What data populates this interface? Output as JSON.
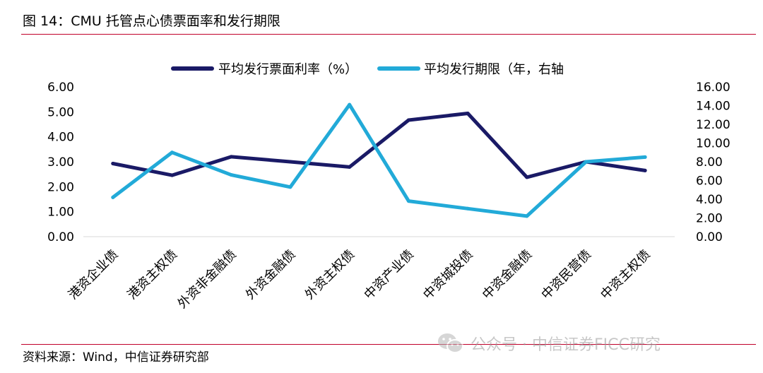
{
  "figure": {
    "title": "图 14：CMU 托管点心债票面率和发行期限",
    "source": "资料来源：Wind，中信证券研究部",
    "watermark": "公众号 · 中信证券FICC研究",
    "rule_color": "#c0002a"
  },
  "chart_data": {
    "type": "line",
    "categories": [
      "港资企业债",
      "港资主权债",
      "外资非金融债",
      "外资金融债",
      "外资主权债",
      "中资产业债",
      "中资城投债",
      "中资金融债",
      "中资民营债",
      "中资主权债"
    ],
    "series": [
      {
        "name": "平均发行票面利率（%）",
        "axis": "left",
        "color": "#1a1a66",
        "values": [
          2.93,
          2.46,
          3.2,
          3.0,
          2.79,
          4.67,
          4.94,
          2.38,
          3.0,
          2.65
        ]
      },
      {
        "name": "平均发行期限（年，右轴",
        "axis": "right",
        "color": "#22aad8",
        "values": [
          4.2,
          9.0,
          6.6,
          5.3,
          14.1,
          3.8,
          3.0,
          2.2,
          8.0,
          8.5
        ]
      }
    ],
    "y_left": {
      "min": 0,
      "max": 6,
      "ticks": [
        "0.00",
        "1.00",
        "2.00",
        "3.00",
        "4.00",
        "5.00",
        "6.00"
      ]
    },
    "y_right": {
      "min": 0,
      "max": 16,
      "ticks": [
        "0.00",
        "2.00",
        "4.00",
        "6.00",
        "8.00",
        "10.00",
        "12.00",
        "14.00",
        "16.00"
      ]
    },
    "legend_position": "top",
    "grid": false
  }
}
